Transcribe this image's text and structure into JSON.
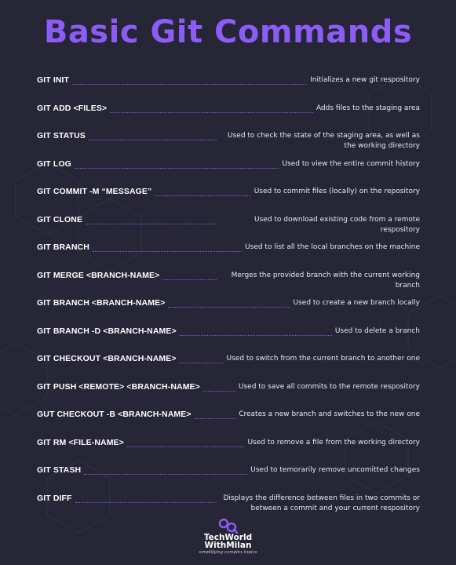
{
  "title": "Basic Git Commands",
  "commands": [
    {
      "cmd": "GIT INIT",
      "desc": "Initializes a new git respository"
    },
    {
      "cmd": "GIT ADD <FILES>",
      "desc": "Adds files to the staging area"
    },
    {
      "cmd": "GIT STATUS",
      "desc": "Used to check the state of the staging area, as well as the working directory"
    },
    {
      "cmd": "GIT LOG",
      "desc": "Used to view the entire commit history"
    },
    {
      "cmd": "GIT COMMIT -M “MESSAGE”",
      "desc": "Used to commit files (locally) on the repository"
    },
    {
      "cmd": "GIT CLONE",
      "desc": "Used to download existing code from a remote respository"
    },
    {
      "cmd": "GIT BRANCH",
      "desc": "Used to list all the local branches on the machine"
    },
    {
      "cmd": "GIT MERGE <BRANCH-NAME>",
      "desc": "Merges the provided branch with the current working branch"
    },
    {
      "cmd": "GIT BRANCH <BRANCH-NAME>",
      "desc": "Used to create a new branch locally"
    },
    {
      "cmd": "GIT BRANCH -D <BRANCH-NAME>",
      "desc": "Used to delete a branch"
    },
    {
      "cmd": "GIT CHECKOUT <BRANCH-NAME>",
      "desc": "Used to switch from the current branch to another one"
    },
    {
      "cmd": "GIT PUSH <REMOTE> <BRANCH-NAME>",
      "desc": "Used to save all commits to the remote respository"
    },
    {
      "cmd": "GUT CHECKOUT -B <BRANCH-NAME>",
      "desc": "Creates a new branch and switches to the new one"
    },
    {
      "cmd": "GIT RM <FILE-NAME>",
      "desc": "Used to remove a file from the working directory"
    },
    {
      "cmd": "GIT STASH",
      "desc": "Used to temorarily remove uncomitted changes"
    },
    {
      "cmd": "GIT DIFF",
      "desc": "Displays the difference between files in two commits or between a commit and your current respository"
    }
  ],
  "logo": {
    "line1": "TechWorld",
    "line2": "WithMilan",
    "tagline": "simplifying complex topics"
  },
  "colors": {
    "background": "#262636",
    "accent": "#8B5CF6",
    "dots": "#7C5CE0",
    "text": "#ffffff"
  }
}
